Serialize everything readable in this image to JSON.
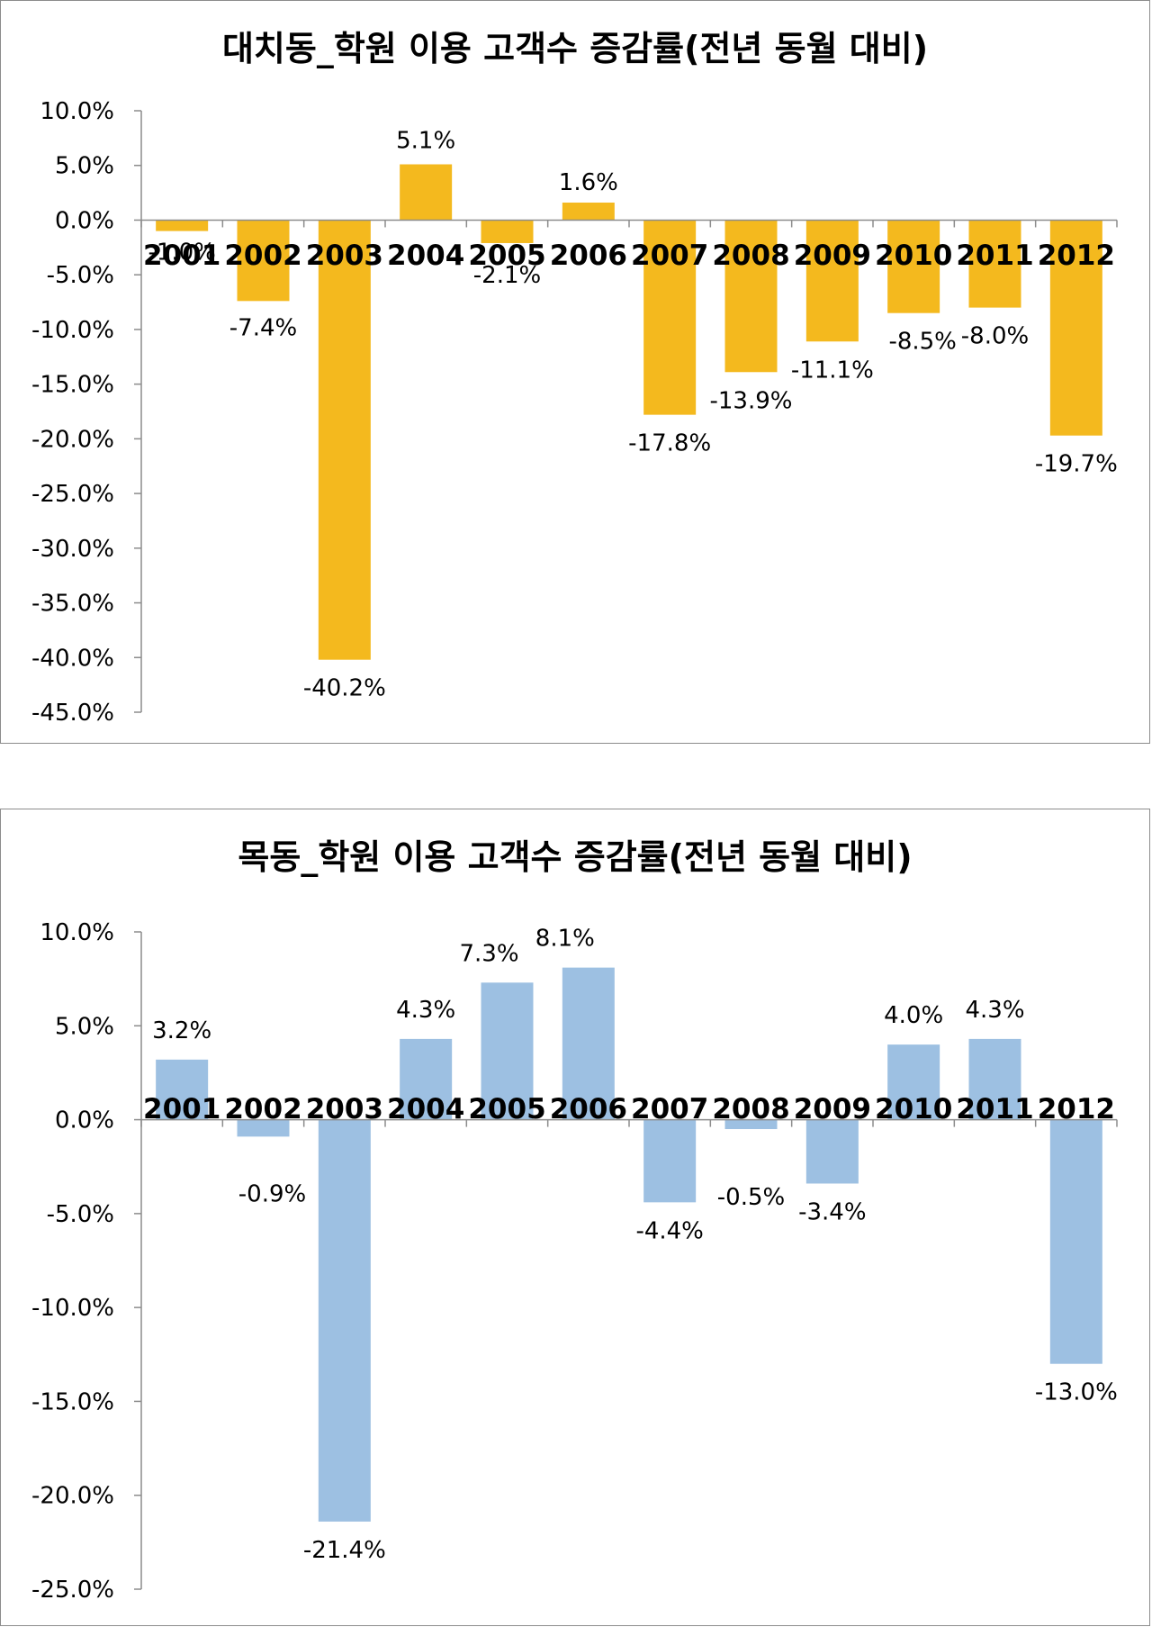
{
  "chart_data": [
    {
      "type": "bar",
      "title": "대치동_학원 이용 고객수 증감률(전년 동월 대비)",
      "categories": [
        "2001",
        "2002",
        "2003",
        "2004",
        "2005",
        "2006",
        "2007",
        "2008",
        "2009",
        "2010",
        "2011",
        "2012"
      ],
      "values": [
        -1.0,
        -7.4,
        -40.2,
        5.1,
        -2.1,
        1.6,
        -17.8,
        -13.9,
        -11.1,
        -8.5,
        -8.0,
        -19.7
      ],
      "data_labels": [
        "-1.0%",
        "-7.4%",
        "-40.2%",
        "5.1%",
        "-2.1%",
        "1.6%",
        "-17.8%",
        "-13.9%",
        "-11.1%",
        "-8.5%",
        "-8.0%",
        "-19.7%"
      ],
      "yticks": [
        "10.0%",
        "5.0%",
        "0.0%",
        "-5.0%",
        "-10.0%",
        "-15.0%",
        "-20.0%",
        "-25.0%",
        "-30.0%",
        "-35.0%",
        "-40.0%",
        "-45.0%"
      ],
      "ylim": [
        -45,
        10
      ],
      "ystep": 5,
      "color": "#F4B91E",
      "grid": false,
      "legend": "none"
    },
    {
      "type": "bar",
      "title": "목동_학원 이용 고객수 증감률(전년 동월 대비)",
      "categories": [
        "2001",
        "2002",
        "2003",
        "2004",
        "2005",
        "2006",
        "2007",
        "2008",
        "2009",
        "2010",
        "2011",
        "2012"
      ],
      "values": [
        3.2,
        -0.9,
        -21.4,
        4.3,
        7.3,
        8.1,
        -4.4,
        -0.5,
        -3.4,
        4.0,
        4.3,
        -13.0
      ],
      "data_labels": [
        "3.2%",
        "-0.9%",
        "-21.4%",
        "4.3%",
        "7.3%",
        "8.1%",
        "-4.4%",
        "-0.5%",
        "-3.4%",
        "4.0%",
        "4.3%",
        "-13.0%"
      ],
      "yticks": [
        "10.0%",
        "5.0%",
        "0.0%",
        "-5.0%",
        "-10.0%",
        "-15.0%",
        "-20.0%",
        "-25.0%"
      ],
      "ylim": [
        -25,
        10
      ],
      "ystep": 5,
      "color": "#9DC0E2",
      "grid": false,
      "legend": "none"
    }
  ]
}
